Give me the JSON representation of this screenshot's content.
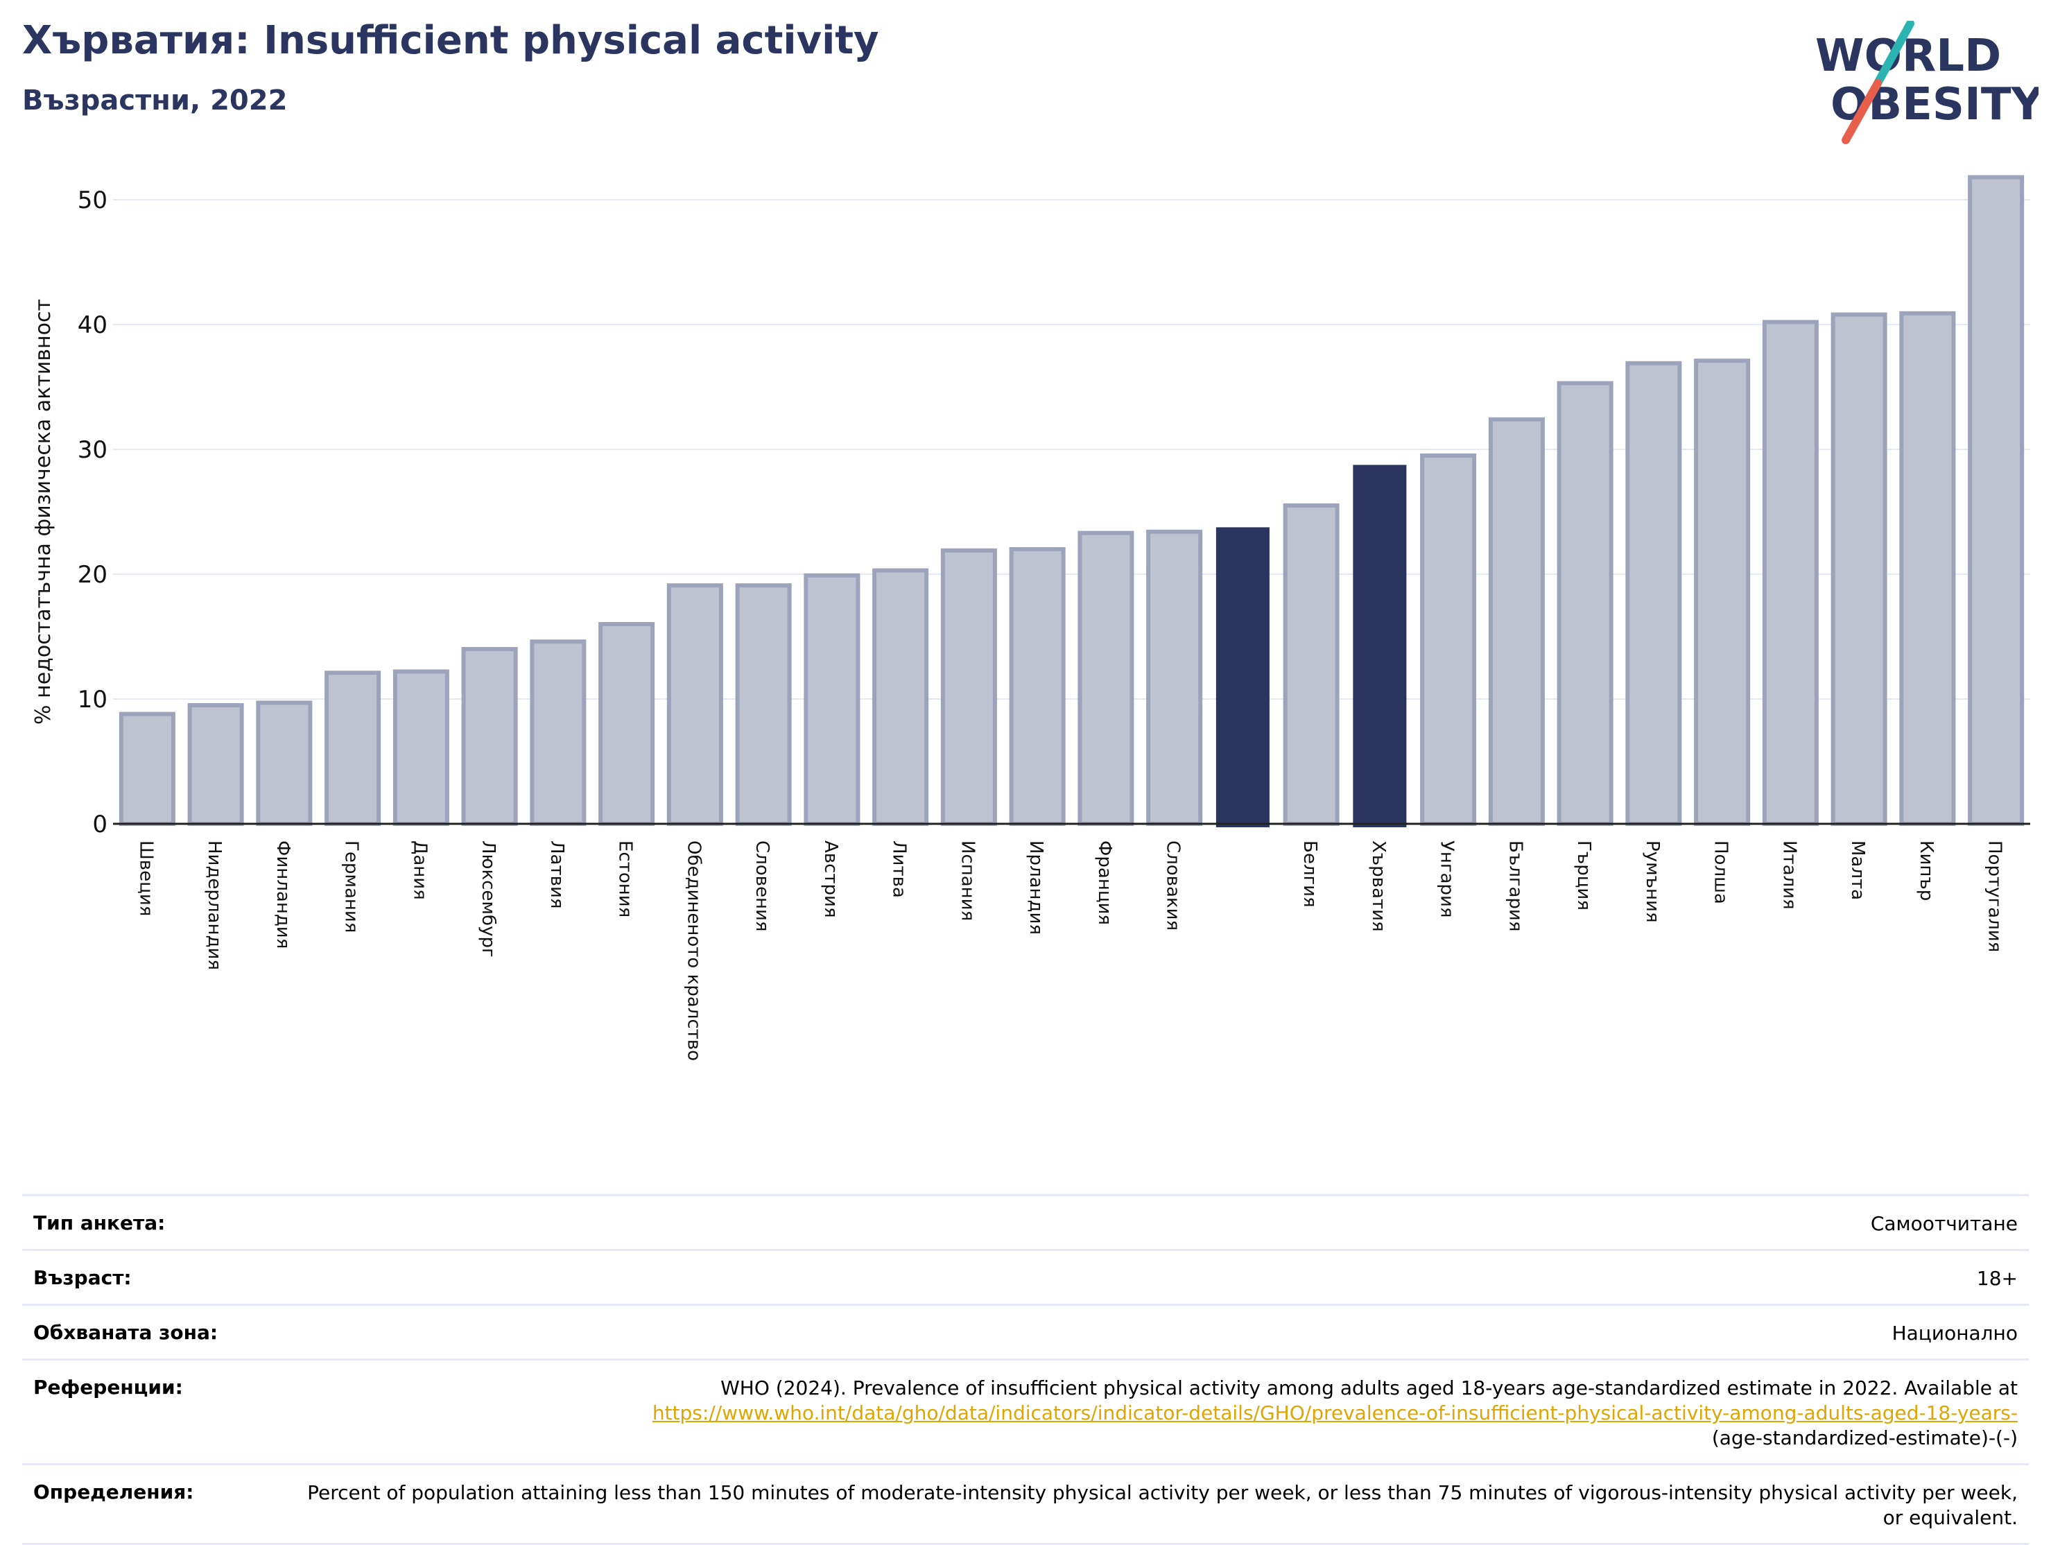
{
  "header": {
    "title": "Хърватия: Insufficient physical activity",
    "subtitle": "Възрастни, 2022"
  },
  "logo": {
    "line1": "WORLD",
    "line2": "OBESITY",
    "slash_top_color": "#2bb3b1",
    "slash_bottom_color": "#e8604c",
    "text_color": "#2a3560"
  },
  "colors": {
    "bar_default": "#bfc2d0",
    "bar_border": "#9ea3bc",
    "bar_highlight": "#2a3560",
    "grid": "#e6e9f5",
    "axis": "#222222"
  },
  "chart_data": {
    "type": "bar",
    "ylabel": "% недостатъчна физическа активност",
    "ylim": [
      0,
      53
    ],
    "yticks": [
      0,
      10,
      20,
      30,
      40,
      50
    ],
    "grid": true,
    "categories": [
      "Швеция",
      "Нидерландия",
      "Финландия",
      "Германия",
      "Дания",
      "Люксембург",
      "Латвия",
      "Естония",
      "Обединеното кралство",
      "Словения",
      "Австрия",
      "Литва",
      "Испания",
      "Ирландия",
      "Франция",
      "Словакия",
      "",
      "Белгия",
      "Хърватия",
      "Унгария",
      "България",
      "Гърция",
      "Румъния",
      "Полша",
      "Италия",
      "Малта",
      "Кипър",
      "Португалия"
    ],
    "values": [
      8.8,
      9.5,
      9.7,
      12.1,
      12.2,
      14.0,
      14.6,
      16.0,
      19.1,
      19.1,
      19.9,
      20.3,
      21.9,
      22.0,
      23.3,
      23.4,
      23.7,
      25.5,
      28.7,
      29.5,
      32.4,
      35.3,
      36.9,
      37.1,
      40.2,
      40.8,
      40.9,
      51.8
    ],
    "highlight": [
      "",
      "Хърватия"
    ]
  },
  "info": {
    "rows": [
      {
        "label": "Тип анкета:",
        "value": "Самоотчитане"
      },
      {
        "label": "Възраст:",
        "value": "18+"
      },
      {
        "label": "Обхваната зона:",
        "value": "Национално"
      },
      {
        "label": "Референции:",
        "value": "WHO (2024). Prevalence of insufficient physical activity among adults aged 18-years age-standardized estimate in 2022. Available at",
        "link": "https://www.who.int/data/gho/data/indicators/indicator-details/GHO/prevalence-of-insufficient-physical-activity-among-adults-aged-18-years-",
        "value_end": "(age-standardized-estimate)-(-)"
      },
      {
        "label": "Определения:",
        "value": "Percent of population attaining less than 150 minutes of moderate-intensity physical activity per week, or less than 75 minutes of vigorous-intensity physical activity per week, or equivalent."
      }
    ]
  }
}
